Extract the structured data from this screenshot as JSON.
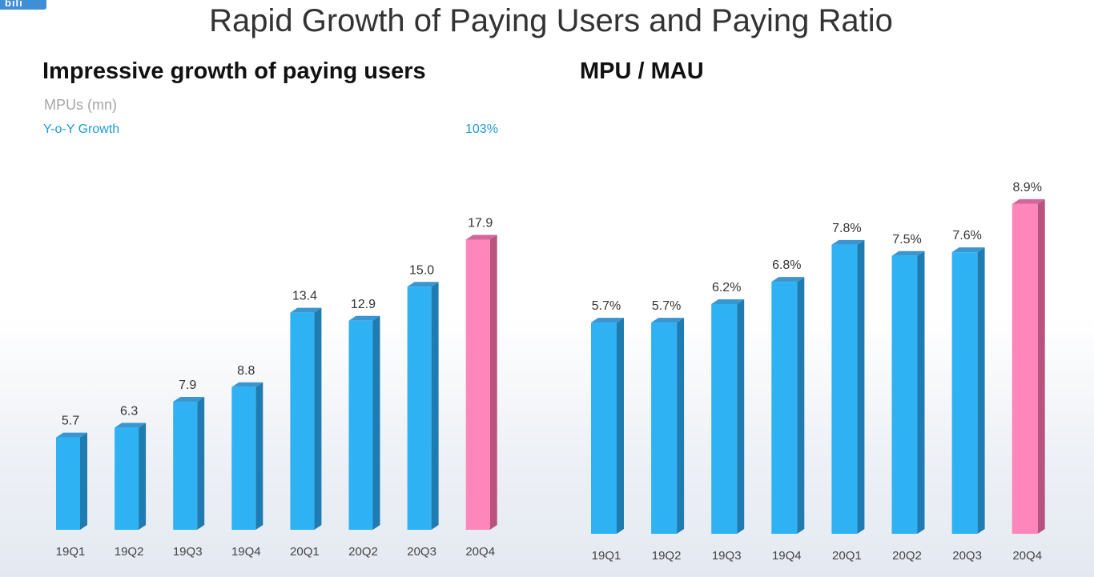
{
  "header": {
    "logo_text": "bili",
    "title": "Rapid Growth of Paying Users and Paying Ratio"
  },
  "left_panel": {
    "title": "Impressive growth of paying users",
    "legend_mpu": "MPUs (mn)",
    "legend_yoy": "Y-o-Y Growth",
    "yoy_value": "103%"
  },
  "right_panel": {
    "title": "MPU / MAU"
  },
  "colors": {
    "bar_blue": "#2fb2f4",
    "bar_blue_side": "#1f7bb0",
    "bar_blue_top": "#3996d1",
    "bar_pink": "#ff86bb",
    "bar_pink_side": "#b8537f",
    "bar_pink_top": "#d4679a",
    "accent_text": "#1b9ad6"
  },
  "chart_data": [
    {
      "type": "bar",
      "title": "Impressive growth of paying users",
      "ylabel": "MPUs (mn)",
      "categories": [
        "19Q1",
        "19Q2",
        "19Q3",
        "19Q4",
        "20Q1",
        "20Q2",
        "20Q3",
        "20Q4"
      ],
      "values": [
        5.7,
        6.3,
        7.9,
        8.8,
        13.4,
        12.9,
        15.0,
        17.9
      ],
      "labels": [
        "5.7",
        "6.3",
        "7.9",
        "8.8",
        "13.4",
        "12.9",
        "15.0",
        "17.9"
      ],
      "highlight_index": 7,
      "annotations": [
        {
          "text": "103%",
          "label": "Y-o-Y Growth"
        }
      ],
      "grid": false
    },
    {
      "type": "bar",
      "title": "MPU / MAU",
      "categories": [
        "19Q1",
        "19Q2",
        "19Q3",
        "19Q4",
        "20Q1",
        "20Q2",
        "20Q3",
        "20Q4"
      ],
      "values": [
        5.7,
        5.7,
        6.2,
        6.8,
        7.8,
        7.5,
        7.6,
        8.9
      ],
      "labels": [
        "5.7%",
        "5.7%",
        "6.2%",
        "6.8%",
        "7.8%",
        "7.5%",
        "7.6%",
        "8.9%"
      ],
      "unit": "%",
      "highlight_index": 7,
      "grid": false
    }
  ]
}
